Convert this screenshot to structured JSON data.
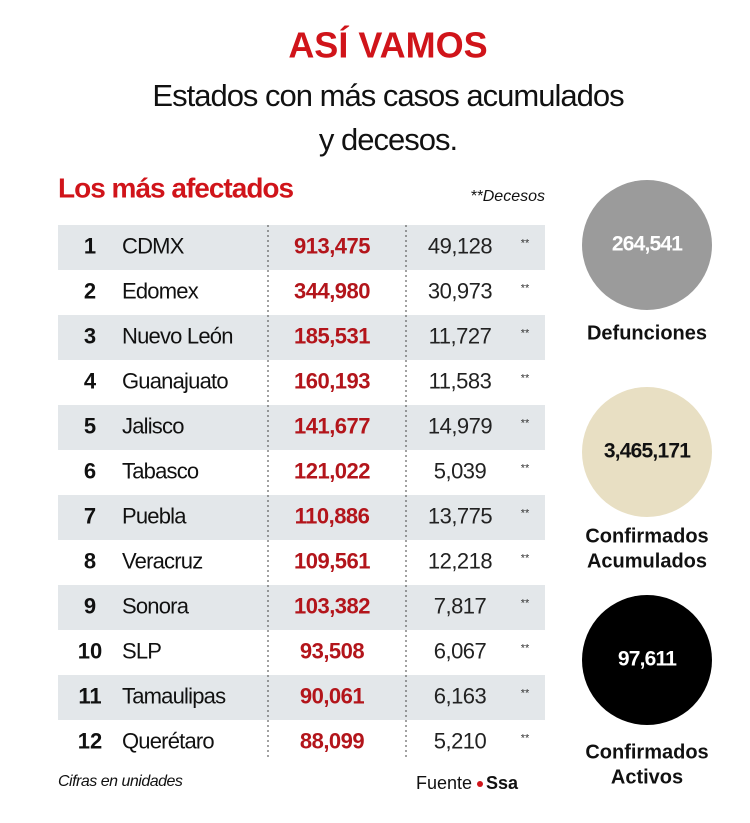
{
  "header": {
    "title": "ASÍ VAMOS",
    "subtitle": [
      "Estados con más casos acumulados",
      "y decesos."
    ]
  },
  "table": {
    "title": "Los más afectados",
    "legend": "**Decesos",
    "marker": "**",
    "rows": [
      [
        "1",
        "CDMX",
        "913,475",
        "49,128"
      ],
      [
        "2",
        "Edomex",
        "344,980",
        "30,973"
      ],
      [
        "3",
        "Nuevo León",
        "185,531",
        "11,727"
      ],
      [
        "4",
        "Guanajuato",
        "160,193",
        "11,583"
      ],
      [
        "5",
        "Jalisco",
        "141,677",
        "14,979"
      ],
      [
        "6",
        "Tabasco",
        "121,022",
        "5,039"
      ],
      [
        "7",
        "Puebla",
        "110,886",
        "13,775"
      ],
      [
        "8",
        "Veracruz",
        "109,561",
        "12,218"
      ],
      [
        "9",
        "Sonora",
        "103,382",
        "7,817"
      ],
      [
        "10",
        "SLP",
        "93,508",
        "6,067"
      ],
      [
        "11",
        "Tamaulipas",
        "90,061",
        "6,163"
      ],
      [
        "12",
        "Querétaro",
        "88,099",
        "5,210"
      ]
    ]
  },
  "summary": [
    {
      "value": "264,541",
      "label": [
        "Defunciones"
      ]
    },
    {
      "value": "3,465,171",
      "label": [
        "Confirmados",
        "Acumulados"
      ]
    },
    {
      "value": "97,611",
      "label": [
        "Confirmados",
        "Activos"
      ]
    }
  ],
  "footer": {
    "note": "Cifras en unidades",
    "source_label": "Fuente",
    "source": "Ssa"
  }
}
